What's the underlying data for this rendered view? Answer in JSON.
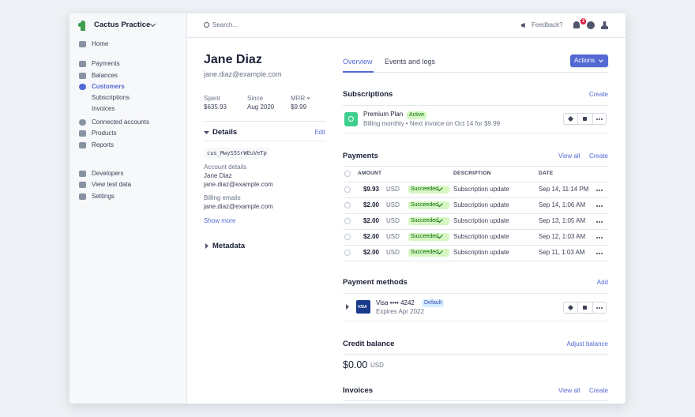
{
  "sidebar": {
    "account": "Cactus Practice",
    "nav": [
      "Home",
      "Payments",
      "Balances",
      "Customers",
      "Subscriptions",
      "Invoices",
      "Connected accounts",
      "Products",
      "Reports",
      "Developers",
      "View test data",
      "Settings"
    ]
  },
  "topbar": {
    "search": "Search...",
    "feedback": "Feedback?",
    "notifications": "2"
  },
  "customer": {
    "name": "Jane Diaz",
    "email": "jane.diaz@example.com",
    "stats": [
      {
        "label": "Spent",
        "value": "$635.93"
      },
      {
        "label": "Since",
        "value": "Aug 2020"
      },
      {
        "label": "MRR",
        "value": "$9.99"
      }
    ],
    "details": {
      "title": "Details",
      "edit": "Edit",
      "id": "cus_MwyS5SrWEuVeTp",
      "account_label": "Account details",
      "account_name": "Jane Diaz",
      "account_email": "jane.diaz@example.com",
      "billing_label": "Billing emails",
      "billing_email": "jane.diaz@example.com",
      "show_more": "Show more"
    },
    "metadata": "Metadata"
  },
  "tabs": [
    "Overview",
    "Events and logs"
  ],
  "actions": "Actions",
  "subscriptions": {
    "title": "Subscriptions",
    "create": "Create",
    "plan": "Premium Plan",
    "status": "Active",
    "description": "Billing monthly • Next invoice on Oct 14 for $9.99"
  },
  "payments": {
    "title": "Payments",
    "view_all": "View all",
    "create": "Create",
    "columns": [
      "AMOUNT",
      "DESCRIPTION",
      "DATE"
    ],
    "rows": [
      {
        "amount": "$9.93",
        "currency": "USD",
        "status": "Succeeded",
        "description": "Subscription update",
        "date": "Sep 14, 11:14 PM"
      },
      {
        "amount": "$2.00",
        "currency": "USD",
        "status": "Succeeded",
        "description": "Subscription update",
        "date": "Sep 14, 1:06 AM"
      },
      {
        "amount": "$2.00",
        "currency": "USD",
        "status": "Succeeded",
        "description": "Subscription update",
        "date": "Sep 13, 1:05 AM"
      },
      {
        "amount": "$2.00",
        "currency": "USD",
        "status": "Succeeded",
        "description": "Subscription update",
        "date": "Sep 12, 1:03 AM"
      },
      {
        "amount": "$2.00",
        "currency": "USD",
        "status": "Succeeded",
        "description": "Subscription update",
        "date": "Sep 11, 1:03 AM"
      }
    ]
  },
  "payment_methods": {
    "title": "Payment methods",
    "add": "Add",
    "brand": "VISA",
    "card": "Visa •••• 4242",
    "badge": "Default",
    "expires": "Expires Apr 2022"
  },
  "credit_balance": {
    "title": "Credit balance",
    "adjust": "Adjust balance",
    "amount": "$0.00",
    "currency": "USD"
  },
  "invoices": {
    "title": "Invoices",
    "view_all": "View all",
    "create": "Create"
  }
}
